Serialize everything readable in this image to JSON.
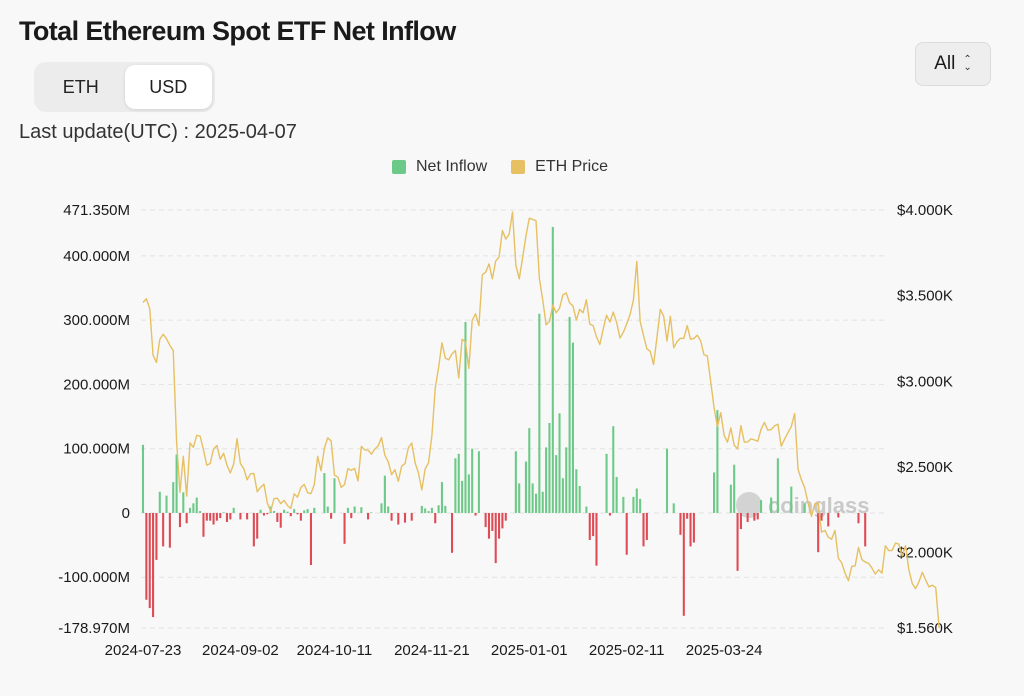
{
  "header": {
    "title": "Total Ethereum Spot ETF Net Inflow"
  },
  "unit_toggle": {
    "options": [
      "ETH",
      "USD"
    ],
    "active": "USD"
  },
  "range_select": {
    "value": "All"
  },
  "last_update": "Last update(UTC) : 2025-04-07",
  "watermark": "coinglass",
  "colors": {
    "inflow_pos": "#6cc987",
    "inflow_neg": "#de4b55",
    "price": "#e6c062",
    "grid": "#e2e2e2"
  },
  "chart_data": {
    "type": "bar",
    "legend": [
      {
        "name": "Net Inflow",
        "color": "#6cc987",
        "icon": "square"
      },
      {
        "name": "ETH Price",
        "color": "#e6c062",
        "icon": "square"
      }
    ],
    "legend_position": "top-center",
    "grid": true,
    "y_left": {
      "ticks": [
        471.35,
        400,
        300,
        200,
        100,
        0,
        -100,
        -178.97
      ],
      "tick_labels": [
        "471.350M",
        "400.000M",
        "300.000M",
        "200.000M",
        "100.000M",
        "0",
        "-100.000M",
        "-178.970M"
      ],
      "range": [
        -178.97,
        471.35
      ]
    },
    "y_right": {
      "ticks": [
        4000,
        3500,
        3000,
        2500,
        2000,
        1560
      ],
      "tick_labels": [
        "$4.000K",
        "$3.500K",
        "$3.000K",
        "$2.500K",
        "$2.000K",
        "$1.560K"
      ],
      "range": [
        1560,
        4000
      ]
    },
    "x_tick_labels": [
      "2024-07-23",
      "2024-09-02",
      "2024-10-11",
      "2024-11-21",
      "2025-01-01",
      "2025-02-11",
      "2025-03-24"
    ],
    "x_tick_index": [
      0,
      29,
      57,
      86,
      115,
      144,
      173
    ],
    "series": [
      {
        "name": "Net Inflow",
        "type": "bar",
        "unit": "M USD",
        "values": [
          106,
          -135,
          -148,
          -162,
          -73,
          33,
          -52,
          27,
          -54,
          48,
          91,
          -22,
          32,
          -16,
          8,
          15,
          24,
          3,
          -37,
          -12,
          -12,
          -18,
          -12,
          -8,
          1,
          -14,
          -10,
          8,
          0,
          -10,
          0,
          -10,
          0,
          -52,
          -40,
          5,
          -4,
          -2,
          10,
          3,
          -14,
          -23,
          5,
          2,
          -5,
          6,
          -2,
          -12,
          4,
          6,
          -81,
          8,
          0,
          0,
          62,
          10,
          -9,
          54,
          0,
          0,
          -48,
          8,
          -8,
          10,
          0,
          9,
          0,
          -10,
          1,
          0,
          0,
          15,
          58,
          10,
          -12,
          0,
          -18,
          0,
          -15,
          0,
          -12,
          0,
          0,
          11,
          7,
          3,
          8,
          -16,
          12,
          48,
          11,
          0,
          -62,
          85,
          92,
          50,
          297,
          60,
          100,
          -4,
          96,
          0,
          -22,
          -40,
          -28,
          -78,
          -40,
          -24,
          -12,
          0,
          0,
          96,
          46,
          0,
          80,
          132,
          46,
          30,
          310,
          33,
          102,
          140,
          445,
          90,
          155,
          54,
          102,
          305,
          265,
          68,
          42,
          0,
          10,
          -42,
          -36,
          -82,
          0,
          0,
          92,
          -4,
          135,
          56,
          0,
          25,
          -65,
          0,
          25,
          38,
          22,
          -52,
          -42,
          0,
          0,
          0,
          0,
          0,
          100,
          0,
          15,
          0,
          -34,
          -160,
          -9,
          -52,
          -46,
          0,
          0,
          0,
          0,
          0,
          63,
          160,
          0,
          0,
          0,
          44,
          75,
          -90,
          -25,
          0,
          -14,
          0,
          -12,
          -10,
          20,
          0,
          0,
          24,
          0,
          85,
          0,
          0,
          0,
          41,
          0,
          0,
          0,
          15,
          0,
          0,
          0,
          -61,
          -12,
          0,
          -21,
          0,
          0,
          -7,
          0,
          0,
          0,
          0,
          0,
          -16,
          0,
          -52,
          0,
          0,
          0,
          0,
          0
        ]
      },
      {
        "name": "ETH Price",
        "type": "line",
        "unit": "USD",
        "values": [
          3460,
          3482,
          3425,
          3152,
          3110,
          3245,
          3275,
          3248,
          3210,
          3180,
          2648,
          2352,
          2562,
          2330,
          2640,
          2615,
          2685,
          2680,
          2600,
          2510,
          2520,
          2605,
          2625,
          2545,
          2580,
          2510,
          2465,
          2518,
          2665,
          2520,
          2490,
          2425,
          2460,
          2462,
          2355,
          2381,
          2400,
          2290,
          2242,
          2315,
          2318,
          2286,
          2305,
          2275,
          2258,
          2343,
          2324,
          2380,
          2398,
          2350,
          2344,
          2398,
          2562,
          2478,
          2610,
          2670,
          2652,
          2453,
          2441,
          2381,
          2398,
          2490,
          2480,
          2492,
          2418,
          2620,
          2600,
          2598,
          2575,
          2605,
          2622,
          2671,
          2569,
          2531,
          2455,
          2484,
          2416,
          2505,
          2520,
          2612,
          2640,
          2525,
          2465,
          2366,
          2489,
          2524,
          2682,
          2960,
          3080,
          3225,
          3135,
          3125,
          3160,
          3180,
          3020,
          3245,
          3230,
          3075,
          3356,
          3394,
          3325,
          3622,
          3637,
          3685,
          3598,
          3702,
          3725,
          3880,
          3830,
          3858,
          3988,
          3678,
          3598,
          3720,
          3848,
          3952,
          3945,
          3938,
          3600,
          3475,
          3330,
          3350,
          3445,
          3400,
          3426,
          3505,
          3516,
          3458,
          3440,
          3358,
          3420,
          3400,
          3476,
          3334,
          3325,
          3260,
          3215,
          3305,
          3386,
          3346,
          3404,
          3344,
          3253,
          3286,
          3335,
          3390,
          3475,
          3700,
          3350,
          3268,
          3190,
          3175,
          3098,
          3256,
          3420,
          3380,
          3235,
          3380,
          3196,
          3232,
          3251,
          3250,
          3325,
          3245,
          3250,
          3270,
          3237,
          3155,
          3148,
          2998,
          2847,
          2735,
          2817,
          2685,
          2645,
          2728,
          2627,
          2605,
          2741,
          2645,
          2646,
          2664,
          2658,
          2650,
          2720,
          2760,
          2715,
          2718,
          2740,
          2750,
          2621,
          2662,
          2700,
          2736,
          2812,
          2488,
          2425,
          2378,
          2289,
          2212,
          2285,
          2290,
          2120,
          2130,
          2090,
          2078,
          2130,
          1968,
          1940,
          1880,
          1836,
          1920,
          1922,
          2030,
          1960,
          1945,
          1938,
          1910,
          1875,
          1900,
          1880,
          2040,
          2012,
          2012,
          2056,
          2050,
          1980,
          2040,
          1900,
          1820,
          1790,
          1830,
          1885,
          1840,
          1800,
          1810,
          1795,
          1560
        ]
      }
    ]
  }
}
